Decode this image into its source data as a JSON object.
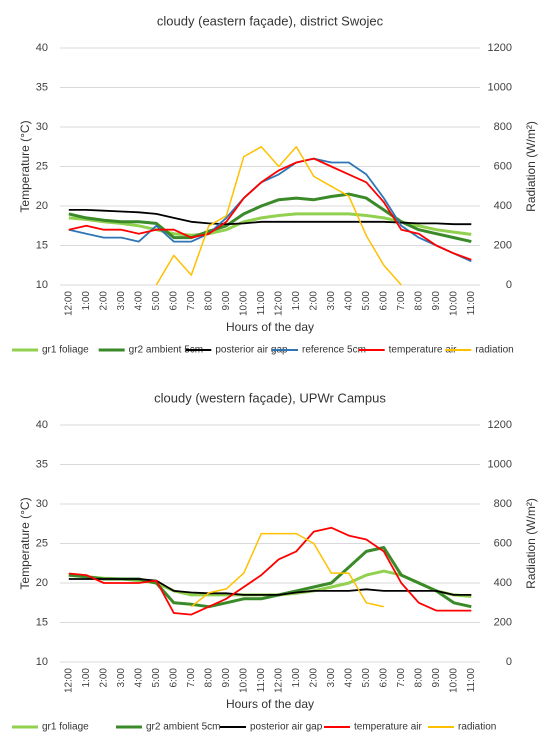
{
  "chart_data": [
    {
      "type": "line",
      "title": "cloudy (eastern façade), district Swojec",
      "x_label": "Hours of the day",
      "y_label": "Temperature  (°C)",
      "y2_label": "Radiation (W/m²)",
      "categories": [
        "12:00",
        "1:00",
        "2:00",
        "3:00",
        "4:00",
        "5:00",
        "6:00",
        "7:00",
        "8:00",
        "9:00",
        "10:00",
        "11:00",
        "12:00",
        "1:00",
        "2:00",
        "3:00",
        "4:00",
        "5:00",
        "6:00",
        "7:00",
        "8:00",
        "9:00",
        "10:00",
        "11:00"
      ],
      "ylim": [
        10,
        40
      ],
      "yticks": [
        10,
        15,
        20,
        25,
        30,
        35,
        40
      ],
      "y2lim": [
        0,
        1200
      ],
      "y2ticks": [
        0,
        200,
        400,
        600,
        800,
        1000,
        1200
      ],
      "legend": "bottom",
      "series": [
        {
          "name": "gr1 foliage",
          "color": "#92d050",
          "values": [
            18.5,
            18.3,
            18,
            17.8,
            17.5,
            17,
            16.5,
            16.3,
            16.5,
            17,
            18,
            18.5,
            18.8,
            19,
            19,
            19,
            19,
            18.8,
            18.5,
            18,
            17.5,
            17,
            16.7,
            16.4
          ]
        },
        {
          "name": "gr2 ambient 5cm",
          "color": "#3a8a2a",
          "values": [
            19,
            18.5,
            18.2,
            18,
            18,
            17.8,
            16,
            16,
            16.8,
            17.5,
            19,
            20,
            20.8,
            21,
            20.8,
            21.2,
            21.5,
            21,
            19.5,
            18,
            17,
            16.5,
            16,
            15.5
          ]
        },
        {
          "name": "posterior air gap",
          "color": "#000000",
          "values": [
            19.5,
            19.5,
            19.4,
            19.3,
            19.2,
            19,
            18.5,
            18,
            17.8,
            17.7,
            17.8,
            18,
            18,
            18,
            18,
            18,
            18,
            18,
            18,
            17.9,
            17.8,
            17.8,
            17.7,
            17.7
          ]
        },
        {
          "name": "reference 5cm",
          "color": "#2e75b6",
          "values": [
            17,
            16.5,
            16,
            16,
            15.5,
            17.5,
            15.5,
            15.5,
            16.5,
            18.5,
            21,
            23,
            24,
            25.5,
            26,
            25.5,
            25.5,
            24,
            21,
            17.5,
            16,
            15,
            14,
            13
          ]
        },
        {
          "name": "temperature air",
          "color": "#ff0000",
          "values": [
            17,
            17.5,
            17,
            17,
            16.5,
            17,
            17,
            16,
            16.5,
            18,
            21,
            23,
            24.5,
            25.5,
            26,
            25,
            24,
            23,
            20.5,
            17,
            16.5,
            15,
            14,
            13.2
          ]
        },
        {
          "name": "radiation",
          "color": "#ffc000",
          "axis": "y2",
          "values": [
            null,
            null,
            null,
            null,
            null,
            0,
            150,
            50,
            300,
            350,
            650,
            700,
            600,
            700,
            550,
            500,
            450,
            250,
            100,
            0,
            null,
            null,
            null,
            null
          ]
        }
      ]
    },
    {
      "type": "line",
      "title": "cloudy (western façade), UPWr Campus",
      "x_label": "Hours of the day",
      "y_label": "Temperature  (°C)",
      "y2_label": "Radiation (W/m²)",
      "categories": [
        "12:00",
        "1:00",
        "2:00",
        "3:00",
        "4:00",
        "5:00",
        "6:00",
        "7:00",
        "8:00",
        "9:00",
        "10:00",
        "11:00",
        "12:00",
        "1:00",
        "2:00",
        "3:00",
        "4:00",
        "5:00",
        "6:00",
        "7:00",
        "8:00",
        "9:00",
        "10:00",
        "11:00"
      ],
      "ylim": [
        10,
        40
      ],
      "yticks": [
        10,
        15,
        20,
        25,
        30,
        35,
        40
      ],
      "y2lim": [
        0,
        1200
      ],
      "y2ticks": [
        0,
        200,
        400,
        600,
        800,
        1000,
        1200
      ],
      "legend": "bottom",
      "series": [
        {
          "name": "gr1 foliage",
          "color": "#92d050",
          "values": [
            21,
            20.8,
            20.6,
            20.5,
            20.3,
            20,
            19,
            18.5,
            18.5,
            18.5,
            18.5,
            18.5,
            18.5,
            18.7,
            19,
            19.5,
            20,
            21,
            21.5,
            21,
            20,
            19,
            18.5,
            18.3
          ]
        },
        {
          "name": "gr2 ambient 5cm",
          "color": "#3a8a2a",
          "values": [
            21,
            20.8,
            20.5,
            20.5,
            20.5,
            20,
            17.5,
            17.3,
            17,
            17.5,
            18,
            18,
            18.5,
            19,
            19.5,
            20,
            22,
            24,
            24.5,
            21,
            20,
            19,
            17.5,
            17
          ]
        },
        {
          "name": "posterior air gap",
          "color": "#000000",
          "values": [
            20.5,
            20.5,
            20.5,
            20.5,
            20.5,
            20.3,
            19,
            18.8,
            18.7,
            18.7,
            18.5,
            18.5,
            18.5,
            18.8,
            19,
            19,
            19,
            19.2,
            19,
            19,
            19,
            19,
            18.5,
            18.5
          ]
        },
        {
          "name": "temperature air",
          "color": "#ff0000",
          "values": [
            21.2,
            21,
            20,
            20,
            20,
            20.3,
            16.2,
            16,
            17,
            18,
            19.5,
            21,
            23,
            24,
            26.5,
            27,
            26,
            25.5,
            24,
            20,
            17.5,
            16.5,
            16.5,
            16.5
          ]
        },
        {
          "name": "radiation",
          "color": "#ffc000",
          "axis": "y2",
          "values": [
            null,
            null,
            null,
            null,
            null,
            null,
            null,
            280,
            350,
            370,
            450,
            650,
            650,
            650,
            600,
            450,
            450,
            300,
            280,
            null,
            null,
            null,
            null,
            null
          ]
        }
      ]
    }
  ]
}
